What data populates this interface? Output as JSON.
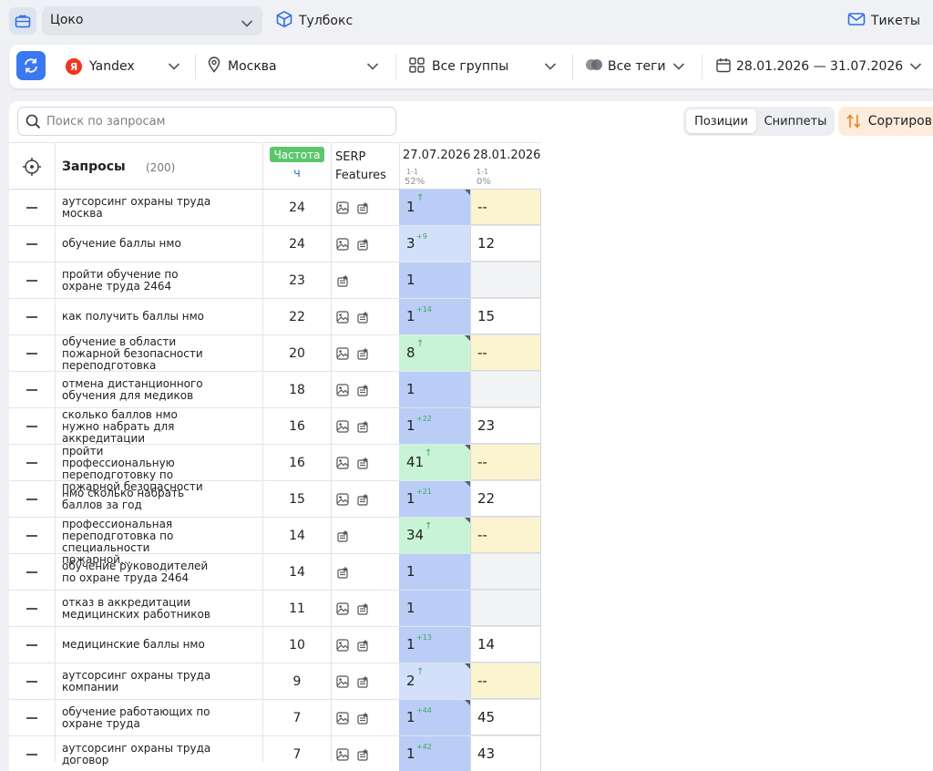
{
  "topbar": {
    "project": "Цоко",
    "toolbox": "Тулбокс",
    "tickets": "Тикеты"
  },
  "filters": {
    "engine": "Yandex",
    "engine_icon_letter": "Я",
    "region": "Москва",
    "groups": "Все группы",
    "tags": "Все теги",
    "daterange": "28.01.2026 — 31.07.2026"
  },
  "toolbar": {
    "search_placeholder": "Поиск по запросам",
    "tab_positions": "Позиции",
    "tab_snippets": "Сниппеты",
    "sort": "Сортировка"
  },
  "table": {
    "header": {
      "queries": "Запросы",
      "queries_count": "(200)",
      "freq_badge": "Частота",
      "freq_sub": "ч",
      "serp_line1": "SERP",
      "serp_line2": "Features",
      "date1": "27.07.2026",
      "date1_range": "1-1",
      "date1_pct": "52%",
      "date2": "28.01.2026",
      "date2_range": "1-1",
      "date2_pct": "0%"
    },
    "rows": [
      {
        "q": "аутсорсинг охраны труда москва",
        "f": "24",
        "serp": [
          "image",
          "snippet"
        ],
        "p1": "1",
        "d": "↑",
        "p1c": "blue",
        "p2": "--",
        "p2c": "yellow",
        "corner": true
      },
      {
        "q": "обучение баллы нмо",
        "f": "24",
        "serp": [
          "image",
          "snippet"
        ],
        "p1": "3",
        "d": "+9",
        "p1c": "lightblue",
        "p2": "12",
        "p2c": "white",
        "corner": false
      },
      {
        "q": "пройти обучение по охране труда 2464",
        "f": "23",
        "serp": [
          "snippet"
        ],
        "p1": "1",
        "d": "",
        "p1c": "blue",
        "p2": "",
        "p2c": "gray",
        "corner": false
      },
      {
        "q": "как получить баллы нмо",
        "f": "22",
        "serp": [
          "image",
          "snippet"
        ],
        "p1": "1",
        "d": "+14",
        "p1c": "blue",
        "p2": "15",
        "p2c": "white",
        "corner": false
      },
      {
        "q": "обучение в области пожарной безопасности переподготовка",
        "f": "20",
        "serp": [
          "image",
          "snippet"
        ],
        "p1": "8",
        "d": "↑",
        "p1c": "green",
        "p2": "--",
        "p2c": "yellow",
        "corner": true
      },
      {
        "q": "отмена дистанционного обучения для медиков",
        "f": "18",
        "serp": [
          "image",
          "snippet"
        ],
        "p1": "1",
        "d": "",
        "p1c": "blue",
        "p2": "",
        "p2c": "gray",
        "corner": false
      },
      {
        "q": "сколько баллов нмо нужно набрать для аккредитации",
        "f": "16",
        "serp": [
          "image",
          "snippet"
        ],
        "p1": "1",
        "d": "+22",
        "p1c": "blue",
        "p2": "23",
        "p2c": "white",
        "corner": false
      },
      {
        "q": "пройти профессиональную переподготовку по пожарной безопасности",
        "f": "16",
        "serp": [
          "image",
          "snippet"
        ],
        "p1": "41",
        "d": "↑",
        "p1c": "green",
        "p2": "--",
        "p2c": "yellow",
        "corner": true
      },
      {
        "q": "нмо сколько набрать баллов за год",
        "f": "15",
        "serp": [
          "image",
          "snippet"
        ],
        "p1": "1",
        "d": "+21",
        "p1c": "blue",
        "p2": "22",
        "p2c": "white",
        "corner": true
      },
      {
        "q": "профессиональная переподготовка по специальности пожарной…",
        "f": "14",
        "serp": [
          "snippet"
        ],
        "p1": "34",
        "d": "↑",
        "p1c": "green",
        "p2": "--",
        "p2c": "yellow",
        "corner": true
      },
      {
        "q": "обучение руководителей по охране труда 2464",
        "f": "14",
        "serp": [
          "snippet"
        ],
        "p1": "1",
        "d": "",
        "p1c": "blue",
        "p2": "",
        "p2c": "gray",
        "corner": false
      },
      {
        "q": "отказ в аккредитации медицинских работников",
        "f": "11",
        "serp": [
          "image",
          "snippet"
        ],
        "p1": "1",
        "d": "",
        "p1c": "blue",
        "p2": "",
        "p2c": "gray",
        "corner": false
      },
      {
        "q": "медицинские баллы нмо",
        "f": "10",
        "serp": [
          "image",
          "snippet"
        ],
        "p1": "1",
        "d": "+13",
        "p1c": "blue",
        "p2": "14",
        "p2c": "white",
        "corner": false
      },
      {
        "q": "аутсорсинг охраны труда компании",
        "f": "9",
        "serp": [
          "image",
          "snippet"
        ],
        "p1": "2",
        "d": "↑",
        "p1c": "lightblue",
        "p2": "--",
        "p2c": "yellow",
        "corner": true
      },
      {
        "q": "обучение работающих по охране труда",
        "f": "7",
        "serp": [
          "image",
          "snippet"
        ],
        "p1": "1",
        "d": "+44",
        "p1c": "blue",
        "p2": "45",
        "p2c": "white",
        "corner": true
      },
      {
        "q": "аутсорсинг охраны труда договор",
        "f": "7",
        "serp": [
          "image",
          "snippet"
        ],
        "p1": "1",
        "d": "+42",
        "p1c": "blue",
        "p2": "43",
        "p2c": "white",
        "corner": false
      }
    ]
  },
  "colors": {
    "accent": "#3a78f2",
    "pos_blue": "#b9cdf7",
    "pos_lightblue": "#d3e0fa",
    "pos_green": "#c9f3d6",
    "pos_yellow": "#fcf3cf",
    "pos_gray": "#f2f3f5",
    "badge_green": "#5cc66b",
    "delta_green": "#3fa85a",
    "sort_bg": "#fdebdc"
  }
}
